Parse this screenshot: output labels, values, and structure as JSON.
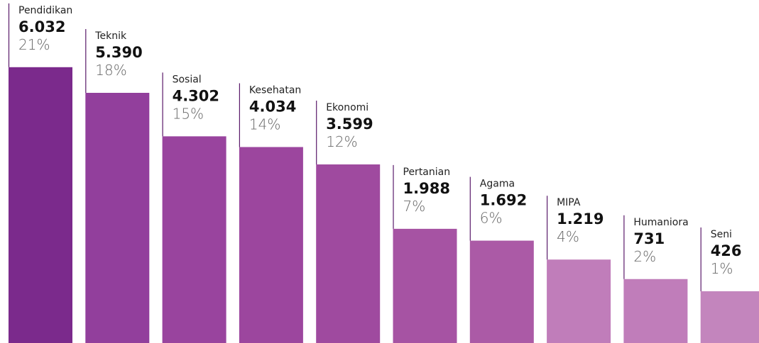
{
  "chart_data": {
    "type": "bar",
    "categories": [
      "Pendidikan",
      "Teknik",
      "Sosial",
      "Kesehatan",
      "Ekonomi",
      "Pertanian",
      "Agama",
      "MIPA",
      "Humaniora",
      "Seni"
    ],
    "values": [
      6032,
      5390,
      4302,
      4034,
      3599,
      1988,
      1692,
      1219,
      731,
      426
    ],
    "value_labels": [
      "6.032",
      "5.390",
      "4.302",
      "4.034",
      "3.599",
      "1.988",
      "1.692",
      "1.219",
      "731",
      "426"
    ],
    "share_labels": [
      "21%",
      "18%",
      "15%",
      "14%",
      "12%",
      "7%",
      "6%",
      "4%",
      "2%",
      "1%"
    ],
    "colors": [
      "#7b2a8c",
      "#923f9c",
      "#99449e",
      "#9c469e",
      "#9f4a9f",
      "#a653a3",
      "#ab5aa6",
      "#c07dba",
      "#c07dba",
      "#c385bd"
    ]
  }
}
